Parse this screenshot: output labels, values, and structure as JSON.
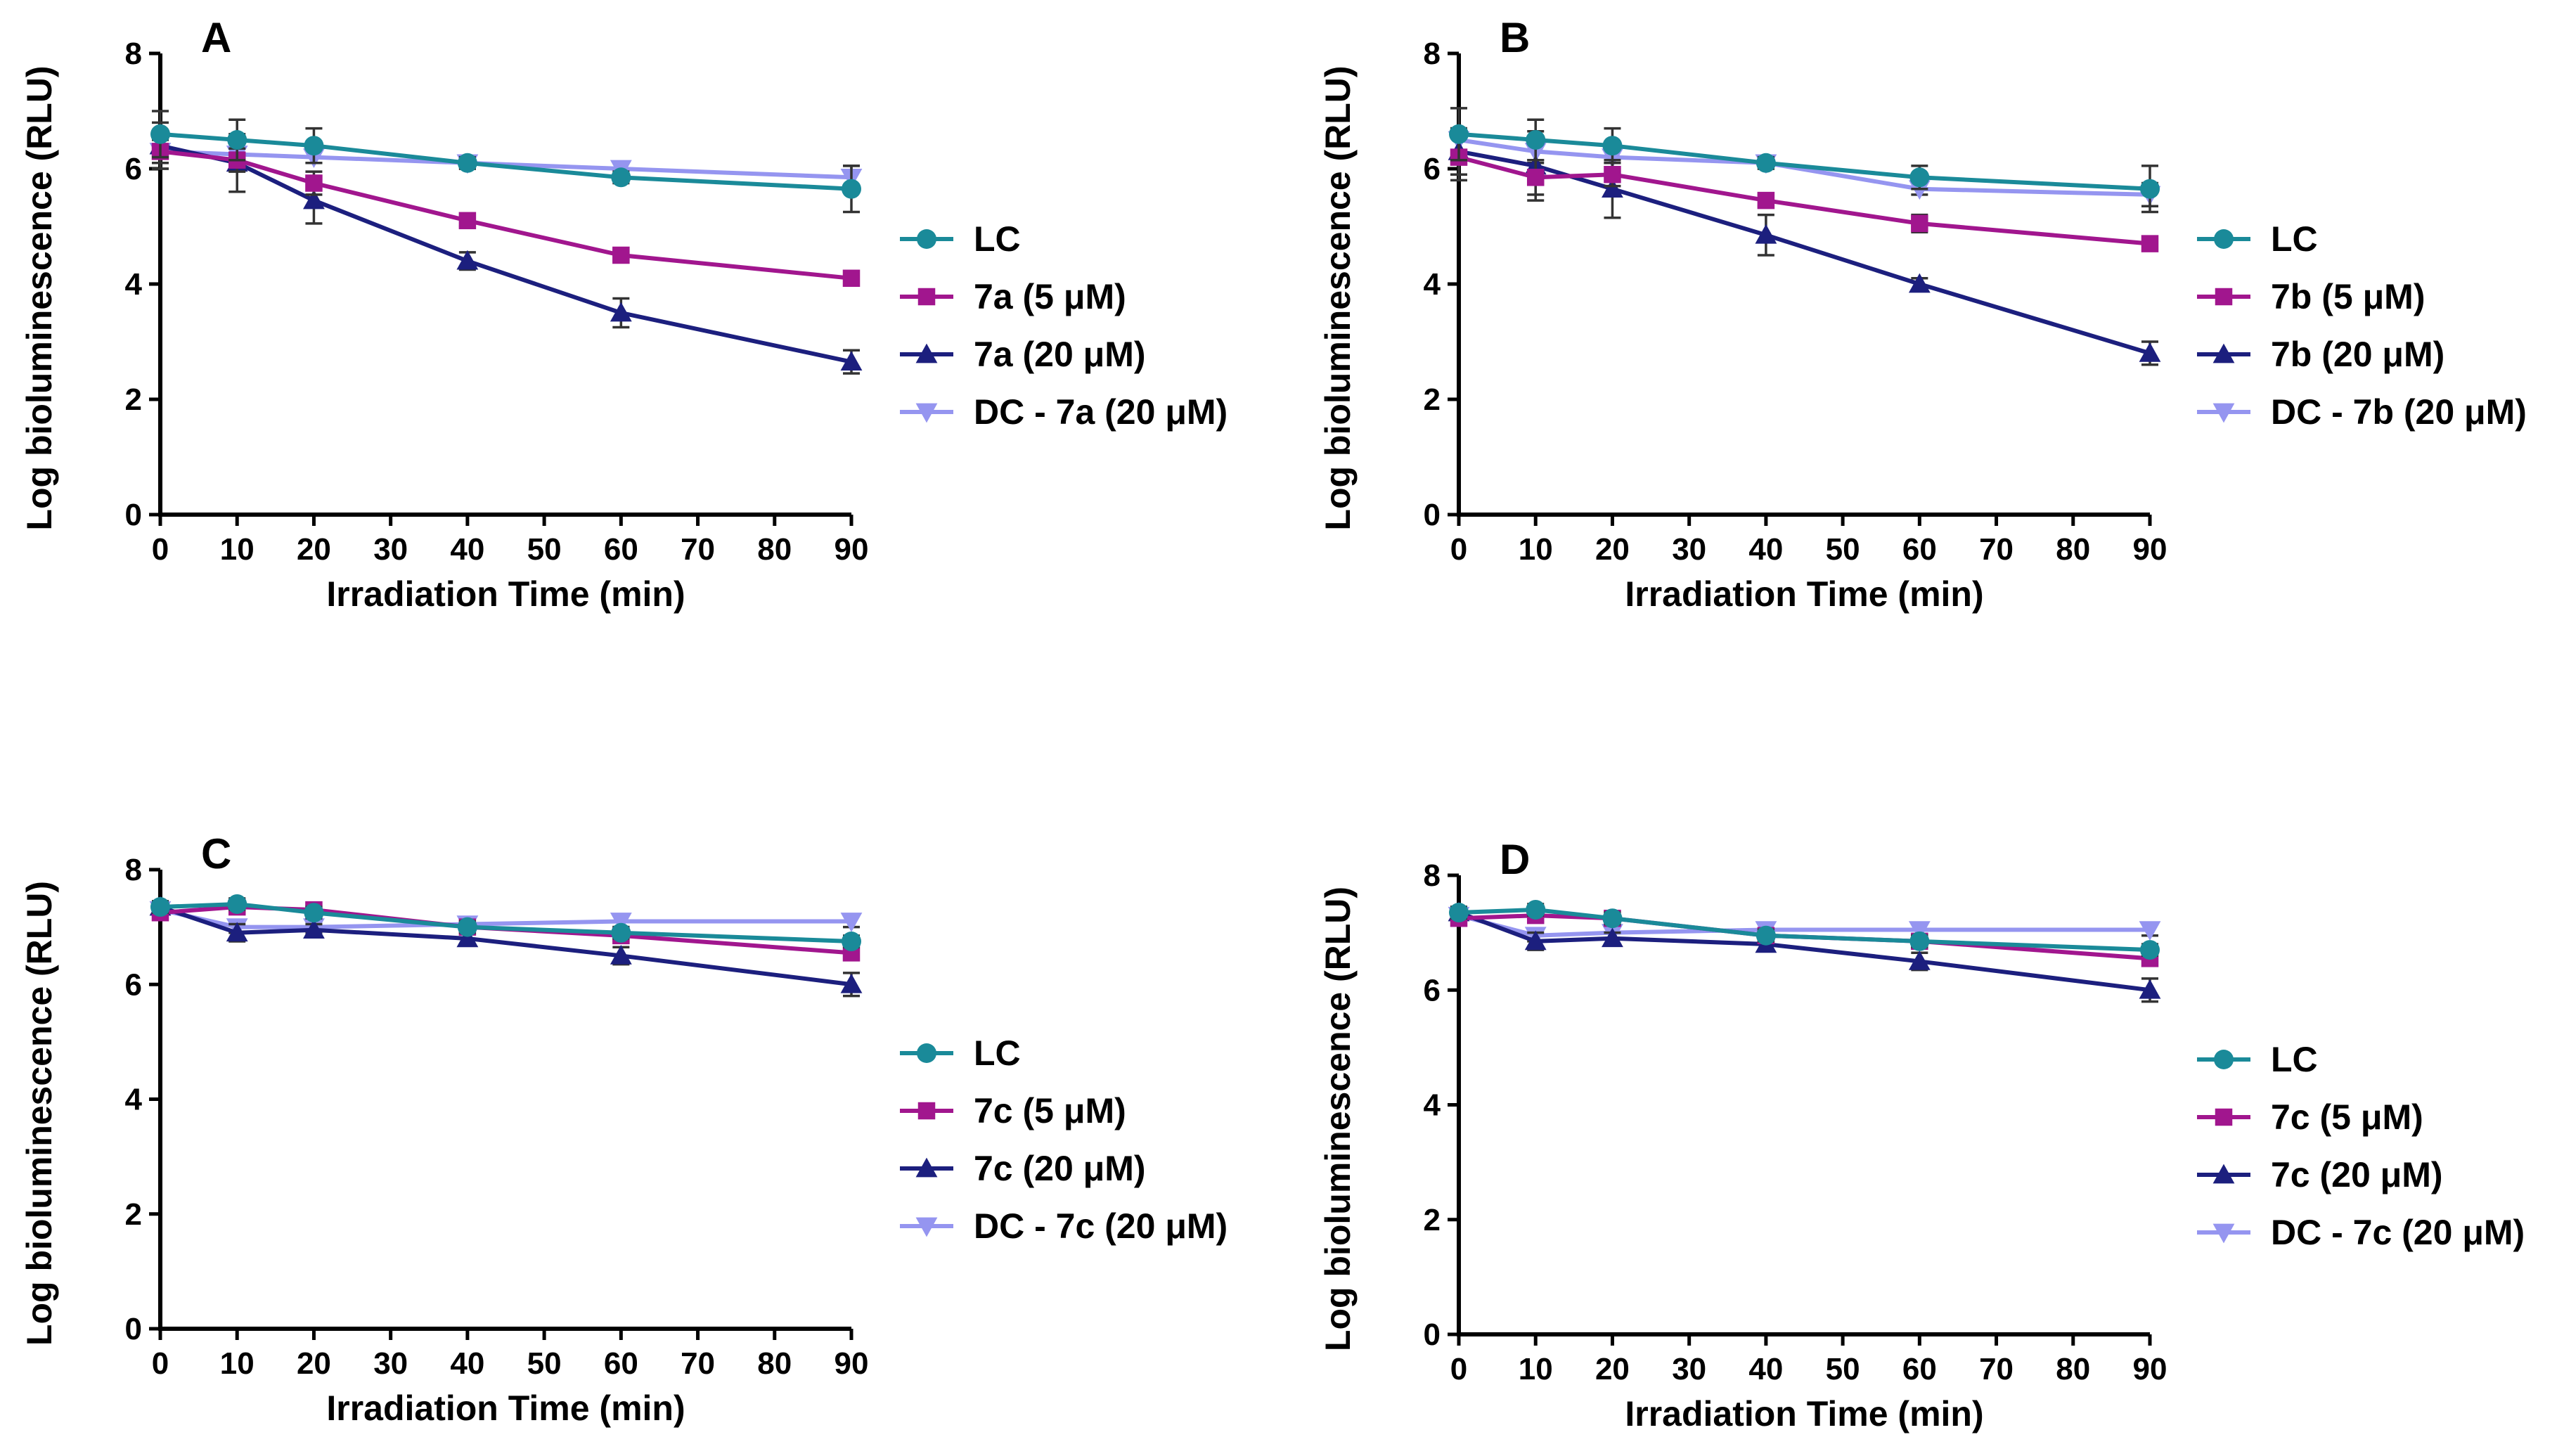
{
  "chart_data": [
    {
      "panel": "A",
      "type": "line",
      "xlabel": "Irradiation Time (min)",
      "ylabel": "Log bioluminescence (RLU)",
      "xlim": [
        0,
        90
      ],
      "ylim": [
        0,
        8
      ],
      "xticks": [
        0,
        10,
        20,
        30,
        40,
        50,
        60,
        70,
        80,
        90
      ],
      "yticks": [
        0,
        2,
        4,
        6,
        8
      ],
      "x": [
        0,
        10,
        20,
        40,
        60,
        90
      ],
      "series": [
        {
          "name": "LC",
          "color": "#1a8a99",
          "marker": "circle",
          "values": [
            6.6,
            6.5,
            6.4,
            6.1,
            5.85,
            5.65
          ],
          "errors": [
            0.4,
            0.35,
            0.3,
            0.1,
            0.1,
            0.4
          ]
        },
        {
          "name": "7a (5 μM)",
          "color": "#a1168e",
          "marker": "square",
          "values": [
            6.3,
            6.15,
            5.75,
            5.1,
            4.5,
            4.1
          ],
          "errors": [
            0.3,
            0.2,
            0.2,
            0.1,
            0.1,
            0.1
          ]
        },
        {
          "name": "7a (20 μM)",
          "color": "#1c1f7e",
          "marker": "triangle-up",
          "values": [
            6.4,
            6.1,
            5.45,
            4.4,
            3.5,
            2.65
          ],
          "errors": [
            0.4,
            0.5,
            0.4,
            0.15,
            0.25,
            0.2
          ]
        },
        {
          "name": "DC - 7a (20 μM)",
          "color": "#9595f0",
          "marker": "triangle-down",
          "values": [
            6.3,
            6.25,
            6.2,
            6.1,
            6.0,
            5.85
          ],
          "errors": [
            0.2,
            0.2,
            0.1,
            0.1,
            0.1,
            0.2
          ]
        }
      ]
    },
    {
      "panel": "B",
      "type": "line",
      "xlabel": "Irradiation Time (min)",
      "ylabel": "Log bioluminescence (RLU)",
      "xlim": [
        0,
        90
      ],
      "ylim": [
        0,
        8
      ],
      "xticks": [
        0,
        10,
        20,
        30,
        40,
        50,
        60,
        70,
        80,
        90
      ],
      "yticks": [
        0,
        2,
        4,
        6,
        8
      ],
      "x": [
        0,
        10,
        20,
        40,
        60,
        90
      ],
      "series": [
        {
          "name": "LC",
          "color": "#1a8a99",
          "marker": "circle",
          "values": [
            6.6,
            6.5,
            6.4,
            6.1,
            5.85,
            5.65
          ],
          "errors": [
            0.45,
            0.35,
            0.3,
            0.1,
            0.2,
            0.4
          ]
        },
        {
          "name": "7b (5 μM)",
          "color": "#a1168e",
          "marker": "square",
          "values": [
            6.2,
            5.85,
            5.9,
            5.45,
            5.05,
            4.7
          ],
          "errors": [
            0.4,
            0.3,
            0.2,
            0.1,
            0.15,
            0.1
          ]
        },
        {
          "name": "7b (20 μM)",
          "color": "#1c1f7e",
          "marker": "triangle-up",
          "values": [
            6.3,
            6.05,
            5.65,
            4.85,
            4.0,
            2.8
          ],
          "errors": [
            0.4,
            0.6,
            0.5,
            0.35,
            0.1,
            0.2
          ]
        },
        {
          "name": "DC - 7b (20 μM)",
          "color": "#9595f0",
          "marker": "triangle-down",
          "values": [
            6.5,
            6.3,
            6.2,
            6.1,
            5.65,
            5.55
          ],
          "errors": [
            0.2,
            0.2,
            0.1,
            0.1,
            0.1,
            0.2
          ]
        }
      ]
    },
    {
      "panel": "C",
      "type": "line",
      "xlabel": "Irradiation Time (min)",
      "ylabel": "Log bioluminescence (RLU)",
      "xlim": [
        0,
        90
      ],
      "ylim": [
        0,
        8
      ],
      "xticks": [
        0,
        10,
        20,
        30,
        40,
        50,
        60,
        70,
        80,
        90
      ],
      "yticks": [
        0,
        2,
        4,
        6,
        8
      ],
      "x": [
        0,
        10,
        20,
        40,
        60,
        90
      ],
      "series": [
        {
          "name": "LC",
          "color": "#1a8a99",
          "marker": "circle",
          "values": [
            7.35,
            7.4,
            7.25,
            7.0,
            6.9,
            6.75
          ],
          "errors": [
            0.1,
            0.1,
            0.1,
            0.1,
            0.1,
            0.1
          ]
        },
        {
          "name": "7c (5 μM)",
          "color": "#a1168e",
          "marker": "square",
          "values": [
            7.25,
            7.35,
            7.3,
            7.0,
            6.85,
            6.55
          ],
          "errors": [
            0.1,
            0.1,
            0.1,
            0.1,
            0.1,
            0.1
          ]
        },
        {
          "name": "7c (20 μM)",
          "color": "#1c1f7e",
          "marker": "triangle-up",
          "values": [
            7.35,
            6.9,
            6.95,
            6.8,
            6.5,
            6.0
          ],
          "errors": [
            0.1,
            0.15,
            0.1,
            0.1,
            0.15,
            0.2
          ]
        },
        {
          "name": "DC - 7c (20 μM)",
          "color": "#9595f0",
          "marker": "triangle-down",
          "values": [
            7.3,
            7.0,
            7.0,
            7.05,
            7.1,
            7.1
          ],
          "errors": [
            0.1,
            0.1,
            0.1,
            0.1,
            0.1,
            0.1
          ]
        }
      ]
    },
    {
      "panel": "D",
      "type": "line",
      "xlabel": "Irradiation Time (min)",
      "ylabel": "Log bioluminescence (RLU)",
      "xlim": [
        0,
        90
      ],
      "ylim": [
        0,
        8
      ],
      "xticks": [
        0,
        10,
        20,
        30,
        40,
        50,
        60,
        70,
        80,
        90
      ],
      "yticks": [
        0,
        2,
        4,
        6,
        8
      ],
      "x": [
        0,
        10,
        20,
        40,
        60,
        90
      ],
      "series": [
        {
          "name": "LC",
          "color": "#1a8a99",
          "marker": "circle",
          "values": [
            7.35,
            7.4,
            7.25,
            6.95,
            6.85,
            6.7
          ],
          "errors": [
            0.1,
            0.1,
            0.1,
            0.1,
            0.1,
            0.1
          ]
        },
        {
          "name": "7c (5 μM)",
          "color": "#a1168e",
          "marker": "square",
          "values": [
            7.25,
            7.3,
            7.25,
            6.95,
            6.85,
            6.55
          ],
          "errors": [
            0.1,
            0.1,
            0.1,
            0.1,
            0.1,
            0.1
          ]
        },
        {
          "name": "7c (20 μM)",
          "color": "#1c1f7e",
          "marker": "triangle-up",
          "values": [
            7.35,
            6.85,
            6.9,
            6.8,
            6.5,
            6.0
          ],
          "errors": [
            0.1,
            0.15,
            0.1,
            0.1,
            0.15,
            0.2
          ]
        },
        {
          "name": "DC - 7c (20 μM)",
          "color": "#9595f0",
          "marker": "triangle-down",
          "values": [
            7.3,
            6.95,
            7.0,
            7.05,
            7.05,
            7.05
          ],
          "errors": [
            0.1,
            0.1,
            0.1,
            0.1,
            0.1,
            0.1
          ]
        }
      ]
    }
  ]
}
